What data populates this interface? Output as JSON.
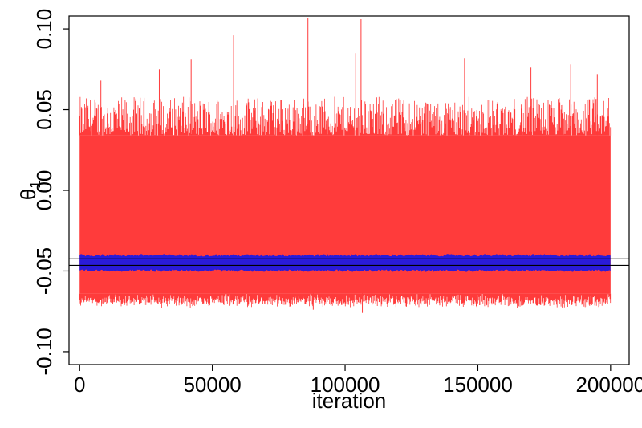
{
  "chart_data": {
    "type": "line",
    "title": "",
    "xlabel": "iteration",
    "ylabel": {
      "symbol": "θ",
      "subscript": "1"
    },
    "xlim": [
      -4000,
      207000
    ],
    "ylim": [
      -0.108,
      0.108
    ],
    "xticks": [
      0,
      50000,
      100000,
      150000,
      200000
    ],
    "xtick_labels": [
      "0",
      "50000",
      "100000",
      "150000",
      "200000"
    ],
    "yticks": [
      -0.1,
      -0.05,
      0.0,
      0.05,
      0.1
    ],
    "ytick_labels": [
      "-0.10",
      "-0.05",
      "0.00",
      "0.05",
      "0.10"
    ],
    "grid": false,
    "legend": "none",
    "series": [
      {
        "color": "#ff3b3b",
        "x_range": [
          0,
          200000
        ],
        "band_low": -0.064,
        "band_high": 0.034,
        "typical_spike_max": 0.058,
        "max": 0.107,
        "min": -0.076
      },
      {
        "color": "#2a1bd9",
        "x_range": [
          0,
          200000
        ],
        "band_low": -0.0495,
        "band_high": -0.0405
      }
    ],
    "reference_lines": [
      {
        "y": -0.0425,
        "color": "#000000"
      },
      {
        "y": -0.0465,
        "color": "#000000"
      }
    ]
  }
}
